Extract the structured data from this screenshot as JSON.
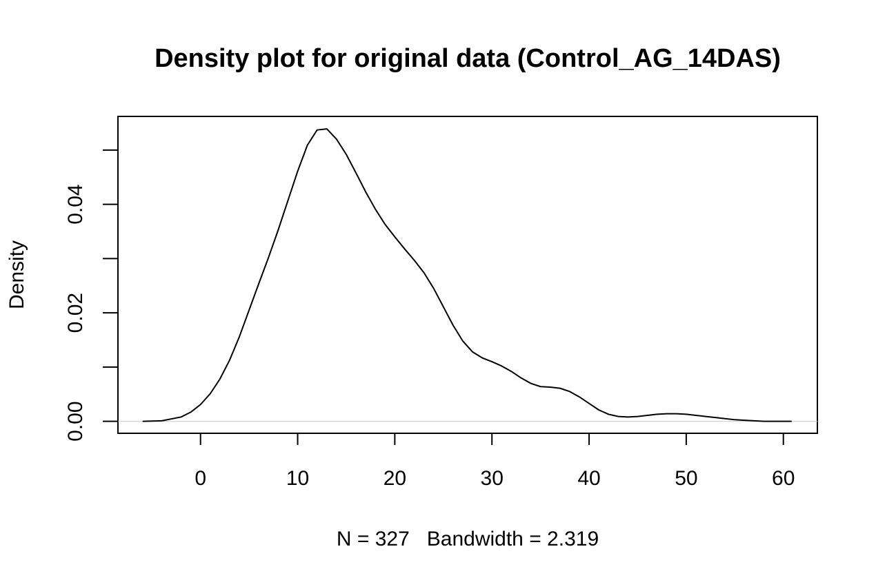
{
  "chart_data": {
    "type": "line",
    "title": "Density plot for original data (Control_AG_14DAS)",
    "xlabel": "N = 327   Bandwidth = 2.319",
    "ylabel": "Density",
    "xlim": [
      -8.5,
      63.5
    ],
    "ylim": [
      -0.0022,
      0.0562
    ],
    "x_ticks": [
      0,
      10,
      20,
      30,
      40,
      50,
      60
    ],
    "x_tick_labels": [
      "0",
      "10",
      "20",
      "30",
      "40",
      "50",
      "60"
    ],
    "y_ticks": [
      0.0,
      0.01,
      0.02,
      0.03,
      0.04,
      0.05
    ],
    "y_tick_labels": [
      "0.00",
      "",
      "0.02",
      "",
      "0.04",
      ""
    ],
    "grid": false,
    "baseline": 0,
    "series": [
      {
        "color": "#000000",
        "x": [
          -5.9,
          -4,
          -2,
          -1,
          0,
          1,
          2,
          3,
          4,
          5,
          6,
          7,
          8,
          9,
          10,
          11,
          12,
          13,
          14,
          15,
          16,
          17,
          18,
          19,
          20,
          21,
          22,
          23,
          24,
          25,
          26,
          27,
          28,
          29,
          30,
          31,
          32,
          33,
          34,
          35,
          36,
          37,
          38,
          39,
          40,
          41,
          42,
          43,
          44,
          45,
          46,
          47,
          48,
          49,
          50,
          51,
          52,
          53,
          54,
          55,
          56,
          57,
          58,
          59,
          60,
          60.8
        ],
        "y": [
          0.0,
          0.0001,
          0.0008,
          0.0017,
          0.0031,
          0.0051,
          0.0078,
          0.0113,
          0.0156,
          0.0205,
          0.0254,
          0.0302,
          0.0353,
          0.0407,
          0.0461,
          0.0509,
          0.0537,
          0.0539,
          0.052,
          0.0492,
          0.0458,
          0.0423,
          0.0391,
          0.0363,
          0.034,
          0.0318,
          0.0297,
          0.0274,
          0.0245,
          0.0211,
          0.0177,
          0.0148,
          0.0128,
          0.0117,
          0.011,
          0.0102,
          0.0092,
          0.008,
          0.007,
          0.0064,
          0.0063,
          0.0061,
          0.0055,
          0.0045,
          0.0033,
          0.0021,
          0.0013,
          0.0009,
          0.0008,
          0.0009,
          0.0011,
          0.0013,
          0.0014,
          0.0014,
          0.0013,
          0.0011,
          0.0009,
          0.0007,
          0.0005,
          0.0003,
          0.0002,
          0.0001,
          0.0,
          0.0,
          0.0,
          0.0
        ]
      }
    ]
  }
}
